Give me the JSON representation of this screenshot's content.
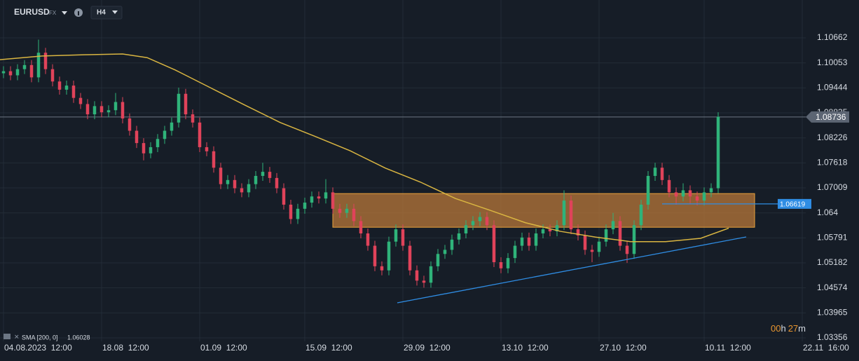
{
  "header": {
    "symbol": "EURUSD",
    "market": "FX",
    "timeframe": "H4",
    "countdown": [
      "00",
      "h",
      "27",
      "m"
    ]
  },
  "chart_data": {
    "type": "candlestick",
    "up_color": "#2fb37a",
    "down_color": "#e0435a",
    "xlim": [
      -0.5,
      114.5
    ],
    "xticks": [
      {
        "value": 0,
        "label": "04.08.2023  12:00"
      },
      {
        "value": 14,
        "label": "18.08  12:00"
      },
      {
        "value": 28,
        "label": "01.09  12:00"
      },
      {
        "value": 43,
        "label": "15.09  12:00"
      },
      {
        "value": 57,
        "label": "29.09  12:00"
      },
      {
        "value": 71,
        "label": "13.10  12:00"
      },
      {
        "value": 85,
        "label": "27.10  12:00"
      },
      {
        "value": 100,
        "label": "10.11  12:00"
      },
      {
        "value": 114,
        "label": "22.11  16:00"
      }
    ],
    "ylim": [
      1.03271,
      1.11584
    ],
    "yticks": [
      1.10662,
      1.10053,
      1.09444,
      1.08835,
      1.08226,
      1.07618,
      1.07009,
      1.064,
      1.05791,
      1.05182,
      1.04574,
      1.03965,
      1.03356
    ],
    "grid": true,
    "candles": [
      [
        1.098,
        1.0997,
        1.0968,
        1.0985
      ],
      [
        1.0985,
        1.0997,
        1.0963,
        1.0975
      ],
      [
        1.0975,
        1.1002,
        1.0963,
        1.099
      ],
      [
        1.099,
        1.1012,
        1.0978,
        1.1
      ],
      [
        1.1,
        1.1012,
        1.0958,
        1.097
      ],
      [
        1.097,
        1.1062,
        1.0958,
        1.103
      ],
      [
        1.103,
        1.1042,
        1.0978,
        1.099
      ],
      [
        1.099,
        1.1002,
        1.0948,
        1.096
      ],
      [
        1.096,
        1.0972,
        1.0928,
        1.094
      ],
      [
        1.094,
        1.0962,
        1.0928,
        1.095
      ],
      [
        1.095,
        1.0962,
        1.0908,
        1.092
      ],
      [
        1.092,
        1.0932,
        1.0893,
        1.0905
      ],
      [
        1.0905,
        1.0917,
        1.0868,
        1.088
      ],
      [
        1.088,
        1.0912,
        1.0868,
        1.09
      ],
      [
        1.09,
        1.0912,
        1.0873,
        1.0885
      ],
      [
        1.0885,
        1.0902,
        1.0873,
        1.089
      ],
      [
        1.089,
        1.0932,
        1.0878,
        1.091
      ],
      [
        1.091,
        1.0922,
        1.0858,
        1.087
      ],
      [
        1.087,
        1.0882,
        1.0828,
        1.084
      ],
      [
        1.084,
        1.0852,
        1.0798,
        1.081
      ],
      [
        1.081,
        1.0822,
        1.0768,
        1.0785
      ],
      [
        1.0785,
        1.0812,
        1.0773,
        1.08
      ],
      [
        1.08,
        1.0832,
        1.0788,
        1.082
      ],
      [
        1.082,
        1.0852,
        1.0808,
        1.084
      ],
      [
        1.084,
        1.0872,
        1.0828,
        1.086
      ],
      [
        1.086,
        1.0945,
        1.0848,
        1.093
      ],
      [
        1.093,
        1.0942,
        1.0868,
        1.088
      ],
      [
        1.088,
        1.0892,
        1.0848,
        1.086
      ],
      [
        1.086,
        1.0872,
        1.0788,
        1.08
      ],
      [
        1.08,
        1.0812,
        1.0778,
        1.079
      ],
      [
        1.079,
        1.0802,
        1.0738,
        1.075
      ],
      [
        1.075,
        1.0762,
        1.0698,
        1.071
      ],
      [
        1.071,
        1.0732,
        1.0698,
        1.072
      ],
      [
        1.072,
        1.0732,
        1.0688,
        1.07
      ],
      [
        1.07,
        1.0712,
        1.0678,
        1.069
      ],
      [
        1.069,
        1.0722,
        1.0678,
        1.071
      ],
      [
        1.071,
        1.0742,
        1.0698,
        1.073
      ],
      [
        1.073,
        1.0762,
        1.0718,
        1.074
      ],
      [
        1.074,
        1.0752,
        1.0713,
        1.0725
      ],
      [
        1.0725,
        1.0737,
        1.0688,
        1.07
      ],
      [
        1.07,
        1.0712,
        1.0648,
        1.066
      ],
      [
        1.066,
        1.0672,
        1.0613,
        1.0625
      ],
      [
        1.0625,
        1.0662,
        1.0613,
        1.065
      ],
      [
        1.065,
        1.0677,
        1.0638,
        1.0665
      ],
      [
        1.0665,
        1.0692,
        1.0653,
        1.068
      ],
      [
        1.068,
        1.0692,
        1.0663,
        1.0675
      ],
      [
        1.0675,
        1.0722,
        1.0663,
        1.069
      ],
      [
        1.069,
        1.0702,
        1.0638,
        1.065
      ],
      [
        1.065,
        1.0662,
        1.0628,
        1.064
      ],
      [
        1.064,
        1.0662,
        1.0628,
        1.065
      ],
      [
        1.065,
        1.0662,
        1.0608,
        1.062
      ],
      [
        1.062,
        1.0632,
        1.0578,
        1.059
      ],
      [
        1.059,
        1.0602,
        1.0548,
        1.056
      ],
      [
        1.056,
        1.0572,
        1.0498,
        1.051
      ],
      [
        1.051,
        1.0522,
        1.0488,
        1.05
      ],
      [
        1.05,
        1.0582,
        1.0488,
        1.057
      ],
      [
        1.057,
        1.0612,
        1.0558,
        1.06
      ],
      [
        1.06,
        1.0612,
        1.0548,
        1.056
      ],
      [
        1.056,
        1.0572,
        1.0488,
        1.05
      ],
      [
        1.05,
        1.0512,
        1.0463,
        1.0475
      ],
      [
        1.0475,
        1.0487,
        1.0458,
        1.047
      ],
      [
        1.047,
        1.0522,
        1.0458,
        1.051
      ],
      [
        1.051,
        1.0552,
        1.0498,
        1.054
      ],
      [
        1.054,
        1.0562,
        1.0528,
        1.055
      ],
      [
        1.055,
        1.0587,
        1.0538,
        1.0575
      ],
      [
        1.0575,
        1.0602,
        1.0563,
        1.059
      ],
      [
        1.059,
        1.0622,
        1.0578,
        1.061
      ],
      [
        1.061,
        1.0632,
        1.0598,
        1.062
      ],
      [
        1.062,
        1.0642,
        1.0608,
        1.063
      ],
      [
        1.063,
        1.0642,
        1.0598,
        1.061
      ],
      [
        1.061,
        1.0622,
        1.0508,
        1.052
      ],
      [
        1.052,
        1.0532,
        1.0493,
        1.0505
      ],
      [
        1.0505,
        1.0542,
        1.0493,
        1.053
      ],
      [
        1.053,
        1.0572,
        1.0518,
        1.056
      ],
      [
        1.056,
        1.0592,
        1.0548,
        1.058
      ],
      [
        1.058,
        1.0592,
        1.0548,
        1.056
      ],
      [
        1.056,
        1.0602,
        1.0548,
        1.059
      ],
      [
        1.059,
        1.0612,
        1.0578,
        1.06
      ],
      [
        1.06,
        1.0612,
        1.0583,
        1.0595
      ],
      [
        1.0595,
        1.0622,
        1.0583,
        1.061
      ],
      [
        1.061,
        1.0695,
        1.0598,
        1.067
      ],
      [
        1.067,
        1.0682,
        1.0588,
        1.06
      ],
      [
        1.06,
        1.0612,
        1.0573,
        1.0585
      ],
      [
        1.0585,
        1.0597,
        1.0538,
        1.055
      ],
      [
        1.055,
        1.0562,
        1.052,
        1.0545
      ],
      [
        1.0545,
        1.0582,
        1.0533,
        1.057
      ],
      [
        1.057,
        1.0612,
        1.0558,
        1.06
      ],
      [
        1.06,
        1.064,
        1.0588,
        1.062
      ],
      [
        1.062,
        1.0632,
        1.0548,
        1.056
      ],
      [
        1.056,
        1.0572,
        1.0518,
        1.054
      ],
      [
        1.054,
        1.0622,
        1.0528,
        1.061
      ],
      [
        1.061,
        1.0672,
        1.0598,
        1.066
      ],
      [
        1.066,
        1.0742,
        1.0648,
        1.073
      ],
      [
        1.073,
        1.0762,
        1.0718,
        1.075
      ],
      [
        1.075,
        1.0762,
        1.0708,
        1.072
      ],
      [
        1.072,
        1.0732,
        1.0678,
        1.069
      ],
      [
        1.069,
        1.0702,
        1.066,
        1.068
      ],
      [
        1.068,
        1.0712,
        1.0668,
        1.0695
      ],
      [
        1.0695,
        1.0707,
        1.0662,
        1.068
      ],
      [
        1.068,
        1.0692,
        1.0658,
        1.067
      ],
      [
        1.067,
        1.0702,
        1.0658,
        1.069
      ],
      [
        1.069,
        1.0712,
        1.0678,
        1.07
      ],
      [
        1.07,
        1.0885,
        1.0688,
        1.0874
      ]
    ],
    "sma": {
      "name": "SMA [200, 0]",
      "color": "#d9b541",
      "x": [
        -0.5,
        5.5,
        11.5,
        17,
        20.5,
        24.5,
        29.5,
        34.5,
        39.5,
        44.5,
        49.5,
        54.5,
        59.5,
        64.5,
        69.5,
        74.5,
        79.5,
        84.5,
        89.5,
        94.5,
        99.5,
        103.5
      ],
      "values": [
        1.1013,
        1.1022,
        1.1025,
        1.1027,
        1.1018,
        1.0988,
        1.0945,
        1.0902,
        1.086,
        1.0826,
        1.0791,
        1.0749,
        1.0715,
        1.0675,
        1.0646,
        1.0616,
        1.0595,
        1.0581,
        1.057,
        1.057,
        1.0578,
        1.06028
      ]
    },
    "zone": {
      "x": [
        47,
        107.2
      ],
      "y": [
        1.0605,
        1.0687
      ],
      "color": "#b8773a"
    },
    "trendline": {
      "x": [
        56.2,
        106
      ],
      "y": [
        1.0421,
        1.05814
      ],
      "color": "#2f8de4"
    },
    "level": {
      "x": [
        94,
        110.5
      ],
      "value": 1.06619,
      "color": "#2f8de4"
    },
    "current_price": 1.08736
  }
}
